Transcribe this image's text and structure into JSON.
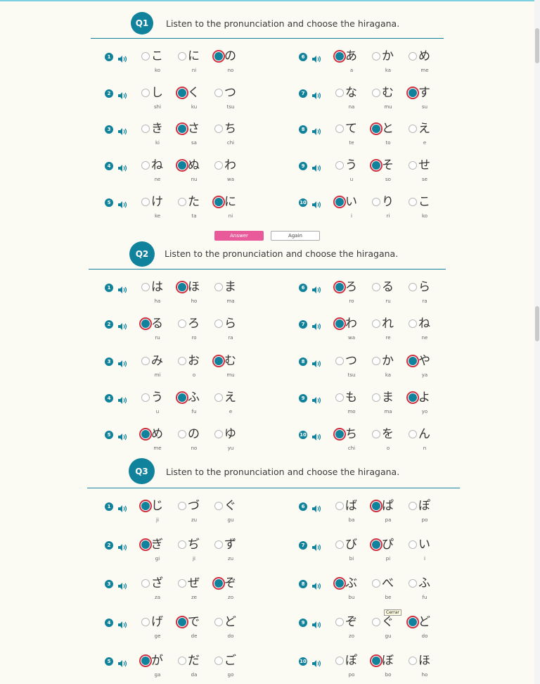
{
  "buttons": {
    "answer": "Answer",
    "again": "Again"
  },
  "tooltip": "Cerrar",
  "icons": {
    "speaker": "speaker-icon"
  },
  "colors": {
    "accent": "#10829b",
    "selected_ring": "#cf2f3f",
    "answer_button": "#e85a9a",
    "background": "#fbfaf3"
  },
  "sections": [
    {
      "label": "Q1",
      "title": "Listen to the pronunciation and choose the hiragana.",
      "questions": [
        {
          "num": "1",
          "options": [
            {
              "kana": "こ",
              "romaji": "ko"
            },
            {
              "kana": "に",
              "romaji": "ni"
            },
            {
              "kana": "の",
              "romaji": "no"
            }
          ],
          "selected": 2
        },
        {
          "num": "2",
          "options": [
            {
              "kana": "し",
              "romaji": "shi"
            },
            {
              "kana": "く",
              "romaji": "ku"
            },
            {
              "kana": "つ",
              "romaji": "tsu"
            }
          ],
          "selected": 1
        },
        {
          "num": "3",
          "options": [
            {
              "kana": "き",
              "romaji": "ki"
            },
            {
              "kana": "さ",
              "romaji": "sa"
            },
            {
              "kana": "ち",
              "romaji": "chi"
            }
          ],
          "selected": 1
        },
        {
          "num": "4",
          "options": [
            {
              "kana": "ね",
              "romaji": "ne"
            },
            {
              "kana": "ぬ",
              "romaji": "nu"
            },
            {
              "kana": "わ",
              "romaji": "wa"
            }
          ],
          "selected": 1
        },
        {
          "num": "5",
          "options": [
            {
              "kana": "け",
              "romaji": "ke"
            },
            {
              "kana": "た",
              "romaji": "ta"
            },
            {
              "kana": "に",
              "romaji": "ni"
            }
          ],
          "selected": 2
        },
        {
          "num": "6",
          "options": [
            {
              "kana": "あ",
              "romaji": "a"
            },
            {
              "kana": "か",
              "romaji": "ka"
            },
            {
              "kana": "め",
              "romaji": "me"
            }
          ],
          "selected": 0
        },
        {
          "num": "7",
          "options": [
            {
              "kana": "な",
              "romaji": "na"
            },
            {
              "kana": "む",
              "romaji": "mu"
            },
            {
              "kana": "す",
              "romaji": "su"
            }
          ],
          "selected": 2
        },
        {
          "num": "8",
          "options": [
            {
              "kana": "て",
              "romaji": "te"
            },
            {
              "kana": "と",
              "romaji": "to"
            },
            {
              "kana": "え",
              "romaji": "e"
            }
          ],
          "selected": 1
        },
        {
          "num": "9",
          "options": [
            {
              "kana": "う",
              "romaji": "u"
            },
            {
              "kana": "そ",
              "romaji": "so"
            },
            {
              "kana": "せ",
              "romaji": "se"
            }
          ],
          "selected": 1
        },
        {
          "num": "10",
          "options": [
            {
              "kana": "い",
              "romaji": "i"
            },
            {
              "kana": "り",
              "romaji": "ri"
            },
            {
              "kana": "こ",
              "romaji": "ko"
            }
          ],
          "selected": 0
        }
      ]
    },
    {
      "label": "Q2",
      "title": "Listen to the pronunciation and choose the hiragana.",
      "questions": [
        {
          "num": "1",
          "options": [
            {
              "kana": "は",
              "romaji": "ha"
            },
            {
              "kana": "ほ",
              "romaji": "ho"
            },
            {
              "kana": "ま",
              "romaji": "ma"
            }
          ],
          "selected": 1
        },
        {
          "num": "2",
          "options": [
            {
              "kana": "る",
              "romaji": "ru"
            },
            {
              "kana": "ろ",
              "romaji": "ro"
            },
            {
              "kana": "ら",
              "romaji": "ra"
            }
          ],
          "selected": 0
        },
        {
          "num": "3",
          "options": [
            {
              "kana": "み",
              "romaji": "mi"
            },
            {
              "kana": "お",
              "romaji": "o"
            },
            {
              "kana": "む",
              "romaji": "mu"
            }
          ],
          "selected": 2
        },
        {
          "num": "4",
          "options": [
            {
              "kana": "う",
              "romaji": "u"
            },
            {
              "kana": "ふ",
              "romaji": "fu"
            },
            {
              "kana": "え",
              "romaji": "e"
            }
          ],
          "selected": 1
        },
        {
          "num": "5",
          "options": [
            {
              "kana": "め",
              "romaji": "me"
            },
            {
              "kana": "の",
              "romaji": "no"
            },
            {
              "kana": "ゆ",
              "romaji": "yu"
            }
          ],
          "selected": 0
        },
        {
          "num": "6",
          "options": [
            {
              "kana": "ろ",
              "romaji": "ro"
            },
            {
              "kana": "る",
              "romaji": "ru"
            },
            {
              "kana": "ら",
              "romaji": "ra"
            }
          ],
          "selected": 0
        },
        {
          "num": "7",
          "options": [
            {
              "kana": "わ",
              "romaji": "wa"
            },
            {
              "kana": "れ",
              "romaji": "re"
            },
            {
              "kana": "ね",
              "romaji": "ne"
            }
          ],
          "selected": 0
        },
        {
          "num": "8",
          "options": [
            {
              "kana": "つ",
              "romaji": "tsu"
            },
            {
              "kana": "か",
              "romaji": "ka"
            },
            {
              "kana": "や",
              "romaji": "ya"
            }
          ],
          "selected": 2
        },
        {
          "num": "9",
          "options": [
            {
              "kana": "も",
              "romaji": "mo"
            },
            {
              "kana": "ま",
              "romaji": "ma"
            },
            {
              "kana": "よ",
              "romaji": "yo"
            }
          ],
          "selected": 2
        },
        {
          "num": "10",
          "options": [
            {
              "kana": "ち",
              "romaji": "chi"
            },
            {
              "kana": "を",
              "romaji": "o"
            },
            {
              "kana": "ん",
              "romaji": "n"
            }
          ],
          "selected": 0
        }
      ]
    },
    {
      "label": "Q3",
      "title": "Listen to the pronunciation and choose the hiragana.",
      "questions": [
        {
          "num": "1",
          "options": [
            {
              "kana": "じ",
              "romaji": "ji"
            },
            {
              "kana": "づ",
              "romaji": "zu"
            },
            {
              "kana": "ぐ",
              "romaji": "gu"
            }
          ],
          "selected": 0
        },
        {
          "num": "2",
          "options": [
            {
              "kana": "ぎ",
              "romaji": "gi"
            },
            {
              "kana": "ぢ",
              "romaji": "ji"
            },
            {
              "kana": "ず",
              "romaji": "zu"
            }
          ],
          "selected": 0
        },
        {
          "num": "3",
          "options": [
            {
              "kana": "ざ",
              "romaji": "za"
            },
            {
              "kana": "ぜ",
              "romaji": "ze"
            },
            {
              "kana": "ぞ",
              "romaji": "zo"
            }
          ],
          "selected": 2
        },
        {
          "num": "4",
          "options": [
            {
              "kana": "げ",
              "romaji": "ge"
            },
            {
              "kana": "で",
              "romaji": "de"
            },
            {
              "kana": "ど",
              "romaji": "do"
            }
          ],
          "selected": 1
        },
        {
          "num": "5",
          "options": [
            {
              "kana": "が",
              "romaji": "ga"
            },
            {
              "kana": "だ",
              "romaji": "da"
            },
            {
              "kana": "ご",
              "romaji": "go"
            }
          ],
          "selected": 0
        },
        {
          "num": "6",
          "options": [
            {
              "kana": "ば",
              "romaji": "ba"
            },
            {
              "kana": "ぱ",
              "romaji": "pa"
            },
            {
              "kana": "ぽ",
              "romaji": "po"
            }
          ],
          "selected": 1
        },
        {
          "num": "7",
          "options": [
            {
              "kana": "び",
              "romaji": "bi"
            },
            {
              "kana": "ぴ",
              "romaji": "pi"
            },
            {
              "kana": "い",
              "romaji": "i"
            }
          ],
          "selected": 1
        },
        {
          "num": "8",
          "options": [
            {
              "kana": "ぶ",
              "romaji": "bu"
            },
            {
              "kana": "べ",
              "romaji": "be"
            },
            {
              "kana": "ふ",
              "romaji": "fu"
            }
          ],
          "selected": 0
        },
        {
          "num": "9",
          "options": [
            {
              "kana": "ぞ",
              "romaji": "zo"
            },
            {
              "kana": "ぐ",
              "romaji": "gu"
            },
            {
              "kana": "ど",
              "romaji": "do"
            }
          ],
          "selected": 2
        },
        {
          "num": "10",
          "options": [
            {
              "kana": "ぽ",
              "romaji": "po"
            },
            {
              "kana": "ぼ",
              "romaji": "bo"
            },
            {
              "kana": "ほ",
              "romaji": "ho"
            }
          ],
          "selected": 1
        }
      ]
    }
  ]
}
